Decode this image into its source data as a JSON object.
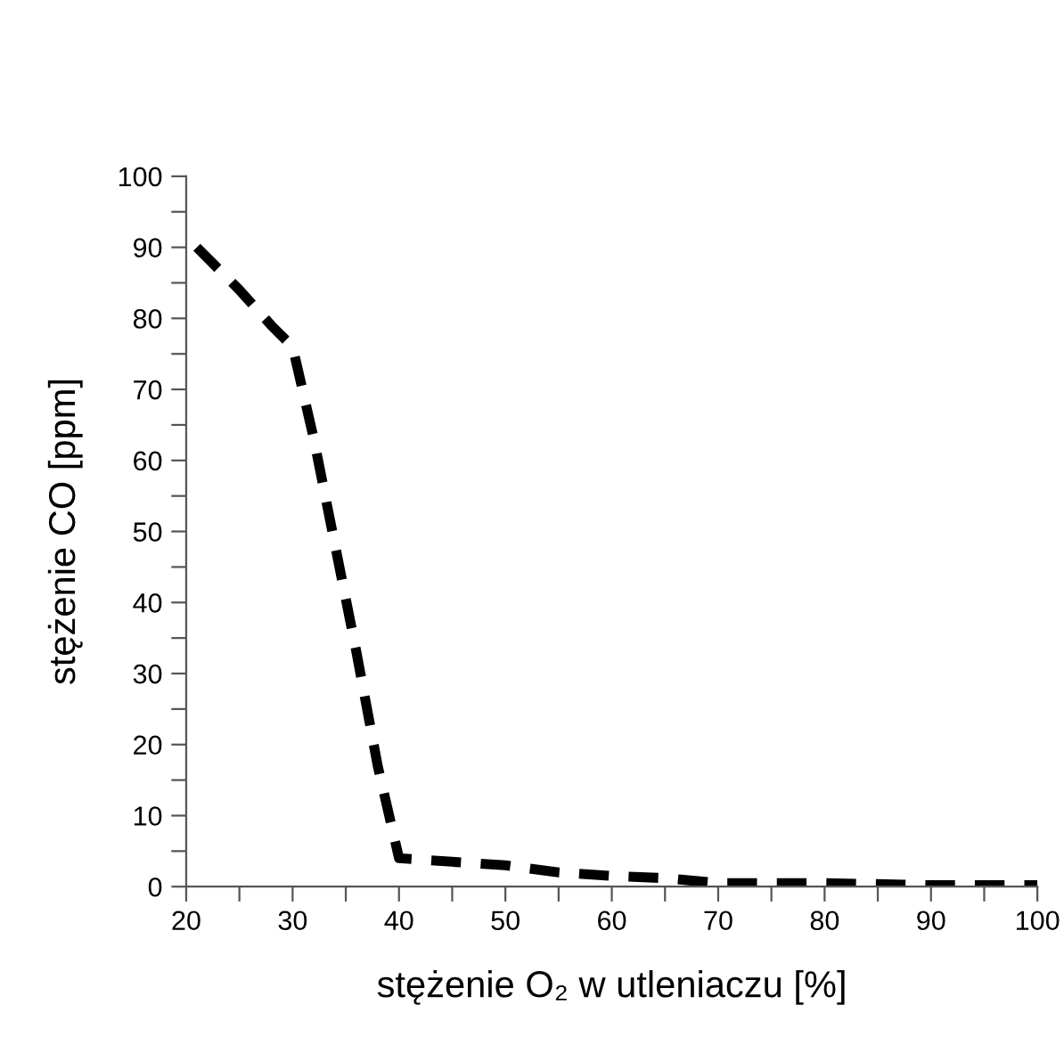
{
  "chart_data": {
    "type": "line",
    "xlabel": "stężenie O₂ w utleniaczu [%]",
    "ylabel": "stężenie CO [ppm]",
    "x": [
      21,
      25,
      28,
      30,
      32,
      34,
      36,
      38,
      40,
      45,
      50,
      55,
      60,
      65,
      70,
      80,
      90,
      100
    ],
    "series": [
      {
        "color": "#000000",
        "values": [
          90,
          84,
          79,
          76,
          63,
          48,
          33,
          17,
          4,
          3.5,
          3,
          2,
          1.5,
          1.2,
          0.5,
          0.5,
          0.2,
          0.2
        ]
      }
    ],
    "line_style": "dashed",
    "marker": "none",
    "grid": false,
    "legend": false,
    "xlim": [
      20,
      100
    ],
    "ylim": [
      0,
      100
    ],
    "xticks": [
      20,
      {
        "value": 25,
        "label": null
      },
      30,
      {
        "value": 35,
        "label": null
      },
      40,
      {
        "value": 45,
        "label": null
      },
      50,
      {
        "value": 55,
        "label": null
      },
      60,
      {
        "value": 65,
        "label": null
      },
      70,
      {
        "value": 75,
        "label": null
      },
      80,
      {
        "value": 85,
        "label": null
      },
      90,
      {
        "value": 95,
        "label": null
      },
      100
    ],
    "yticks": [
      0,
      {
        "value": 5,
        "label": null
      },
      10,
      {
        "value": 15,
        "label": null
      },
      20,
      {
        "value": 25,
        "label": null
      },
      30,
      {
        "value": 35,
        "label": null
      },
      40,
      {
        "value": 45,
        "label": null
      },
      50,
      {
        "value": 55,
        "label": null
      },
      60,
      {
        "value": 65,
        "label": null
      },
      70,
      {
        "value": 75,
        "label": null
      },
      80,
      {
        "value": 85,
        "label": null
      },
      90,
      {
        "value": 95,
        "label": null
      },
      100
    ]
  }
}
